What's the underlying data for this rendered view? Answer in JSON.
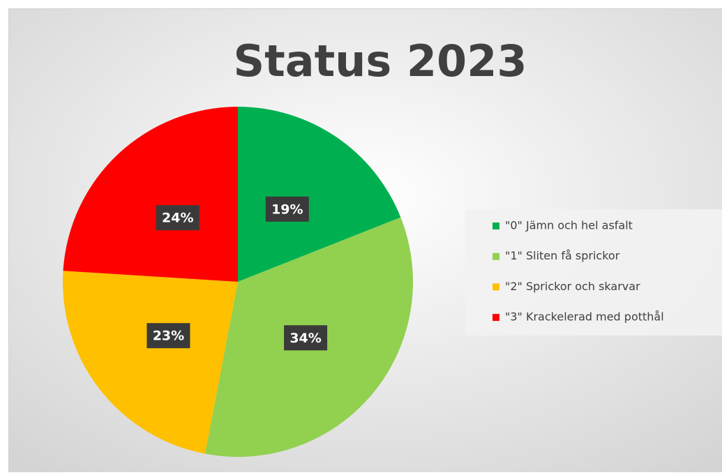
{
  "chart_data": {
    "type": "pie",
    "title": "Status 2023",
    "categories": [
      "\"0\" Jämn och hel asfalt",
      "\"1\" Sliten få sprickor",
      "\"2\" Sprickor och skarvar",
      "\"3\" Krackelerad med potthål"
    ],
    "values": [
      19,
      34,
      23,
      24
    ],
    "value_labels": [
      "19%",
      "34%",
      "23%",
      "24%"
    ],
    "colors": [
      "#00b050",
      "#92d050",
      "#ffc000",
      "#ff0000"
    ],
    "legend": "right"
  }
}
